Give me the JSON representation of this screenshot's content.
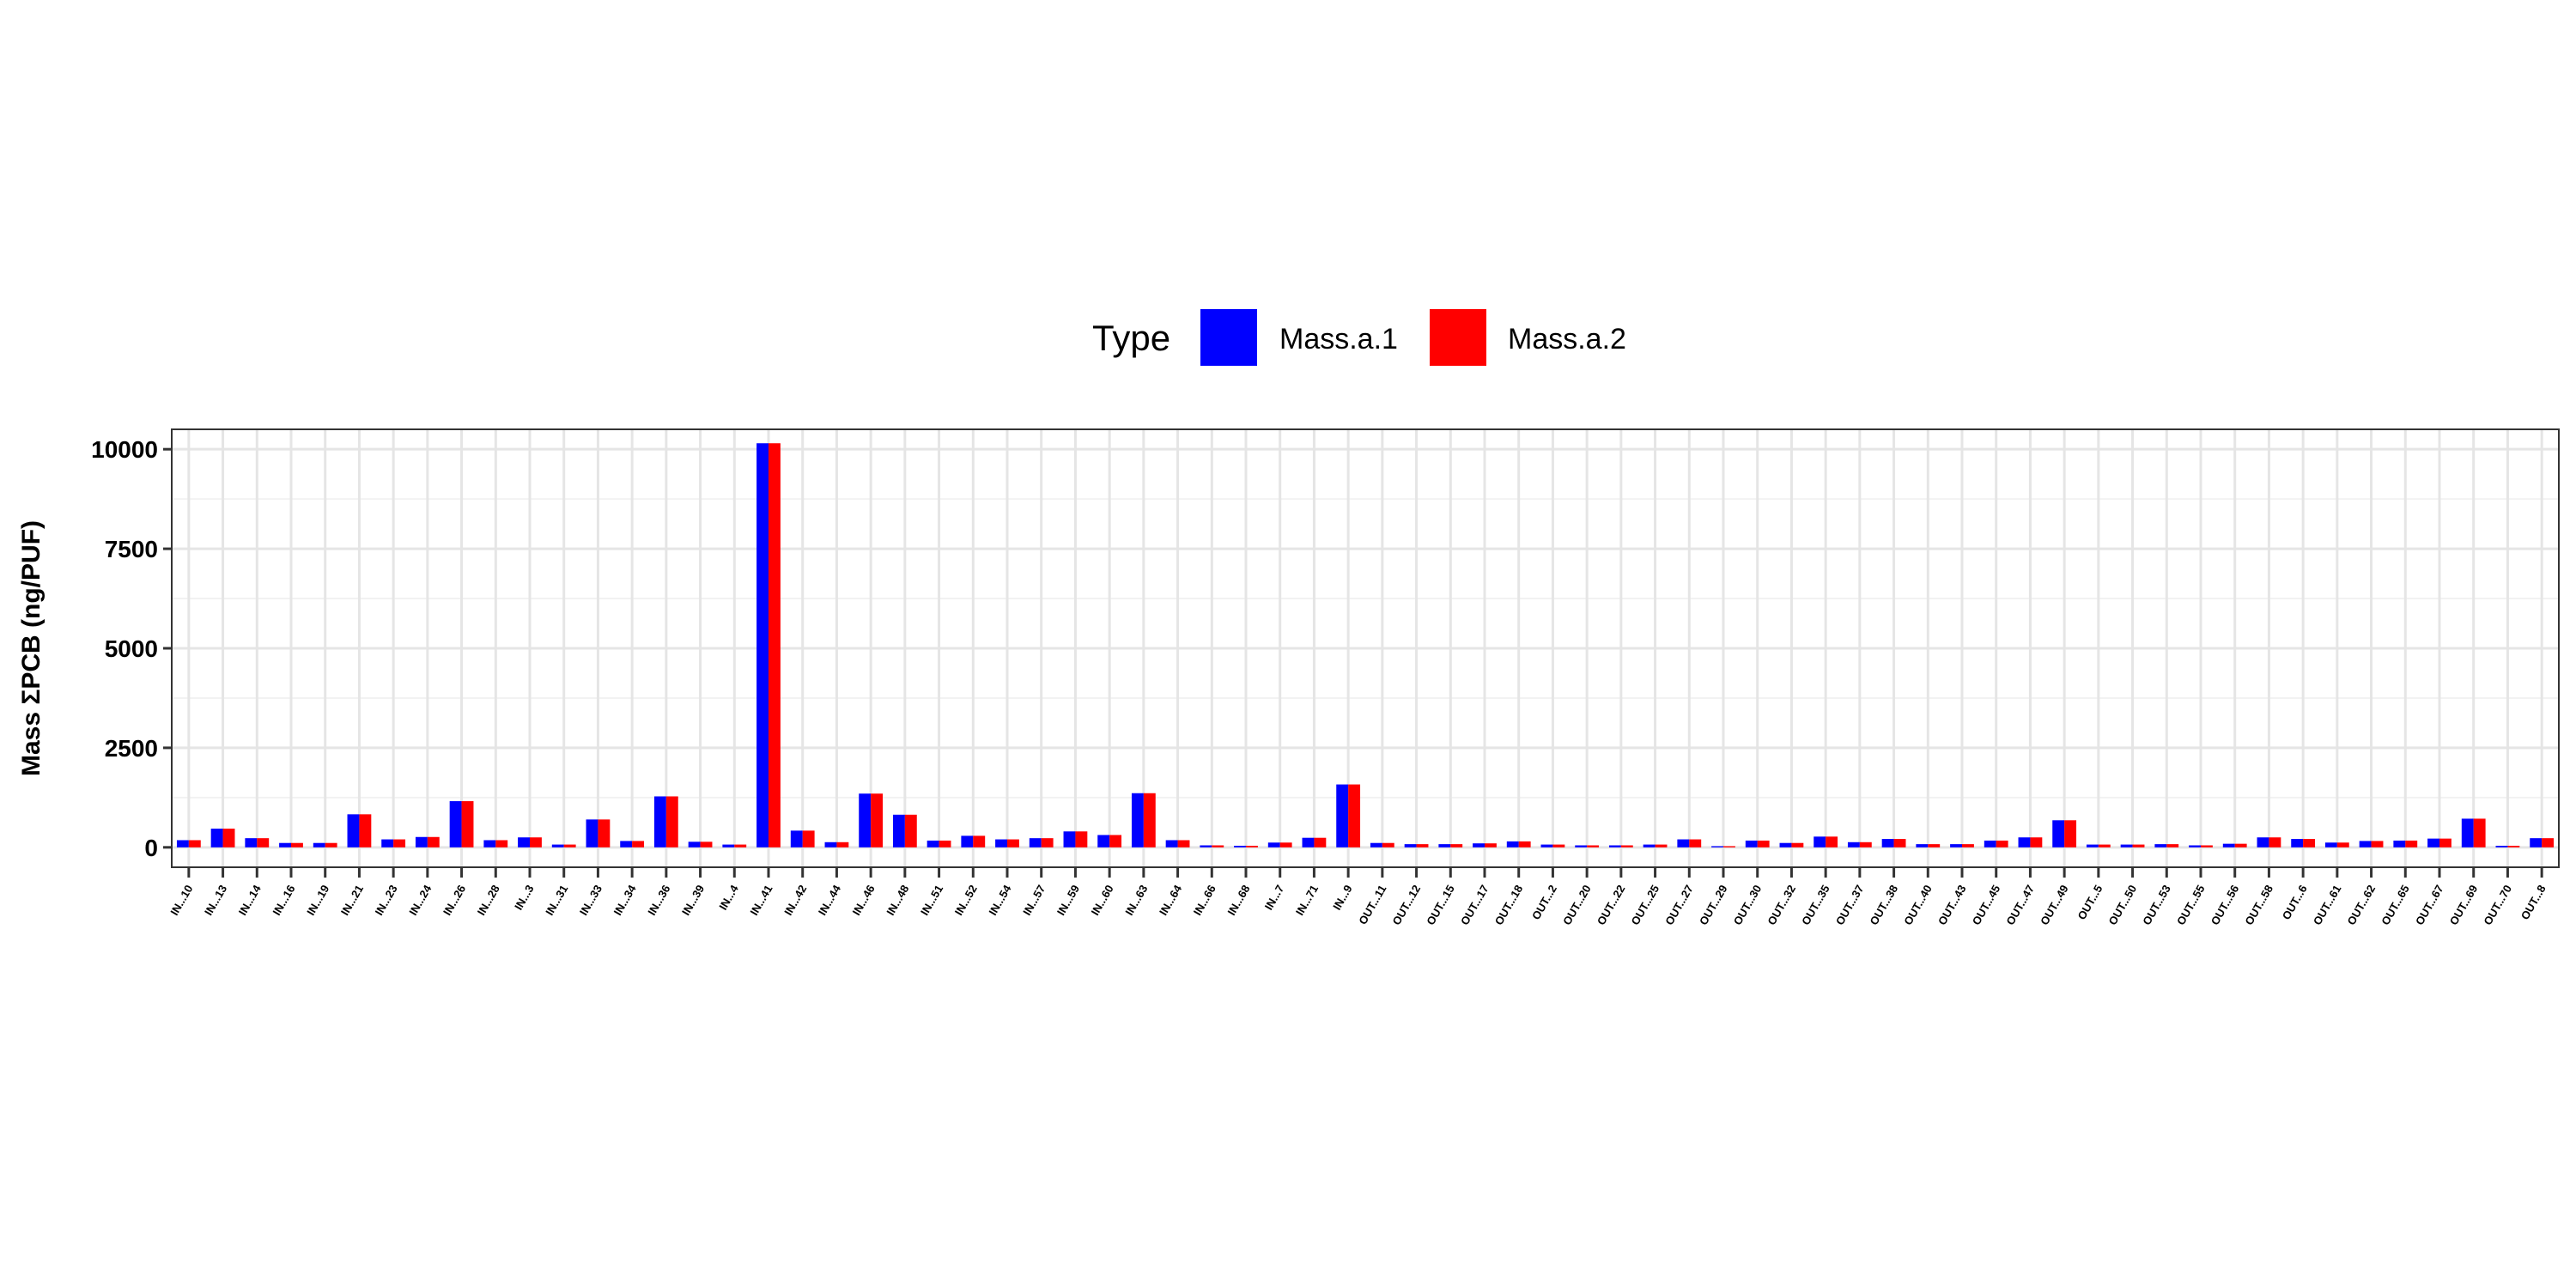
{
  "chart_data": {
    "type": "bar",
    "title": "",
    "xlabel": "",
    "ylabel": "Mass ΣPCB (ng/PUF)",
    "ylim": [
      -500,
      10500
    ],
    "yticks": [
      0,
      2500,
      5000,
      7500,
      10000
    ],
    "grid": true,
    "legend": {
      "title": "Type",
      "position": "top"
    },
    "categories": [
      "IN...10",
      "IN...13",
      "IN...14",
      "IN...16",
      "IN...19",
      "IN...21",
      "IN...23",
      "IN...24",
      "IN...26",
      "IN...28",
      "IN...3",
      "IN...31",
      "IN...33",
      "IN...34",
      "IN...36",
      "IN...39",
      "IN...4",
      "IN...41",
      "IN...42",
      "IN...44",
      "IN...46",
      "IN...48",
      "IN...51",
      "IN...52",
      "IN...54",
      "IN...57",
      "IN...59",
      "IN...60",
      "IN...63",
      "IN...64",
      "IN...66",
      "IN...68",
      "IN...7",
      "IN...71",
      "IN...9",
      "OUT...11",
      "OUT...12",
      "OUT...15",
      "OUT...17",
      "OUT...18",
      "OUT...2",
      "OUT...20",
      "OUT...22",
      "OUT...25",
      "OUT...27",
      "OUT...29",
      "OUT...30",
      "OUT...32",
      "OUT...35",
      "OUT...37",
      "OUT...38",
      "OUT...40",
      "OUT...43",
      "OUT...45",
      "OUT...47",
      "OUT...49",
      "OUT...5",
      "OUT...50",
      "OUT...53",
      "OUT...55",
      "OUT...56",
      "OUT...58",
      "OUT...6",
      "OUT...61",
      "OUT...62",
      "OUT...65",
      "OUT...67",
      "OUT...69",
      "OUT...70",
      "OUT...8"
    ],
    "series": [
      {
        "name": "Mass.a.1",
        "color": "#0000ff",
        "values": [
          180,
          470,
          230,
          110,
          110,
          830,
          200,
          260,
          1160,
          180,
          250,
          70,
          700,
          160,
          1280,
          140,
          70,
          10150,
          420,
          130,
          1350,
          820,
          170,
          290,
          200,
          230,
          400,
          310,
          1360,
          180,
          50,
          40,
          120,
          240,
          1580,
          110,
          80,
          80,
          100,
          150,
          70,
          50,
          50,
          70,
          200,
          30,
          170,
          110,
          270,
          130,
          210,
          80,
          80,
          170,
          250,
          680,
          70,
          70,
          80,
          50,
          90,
          250,
          210,
          120,
          160,
          170,
          220,
          720,
          40,
          230
        ]
      },
      {
        "name": "Mass.a.2",
        "color": "#ff0000",
        "values": [
          180,
          470,
          230,
          110,
          110,
          830,
          200,
          260,
          1160,
          180,
          250,
          70,
          700,
          160,
          1280,
          140,
          70,
          10150,
          420,
          130,
          1350,
          820,
          170,
          290,
          200,
          230,
          400,
          310,
          1360,
          180,
          50,
          40,
          120,
          240,
          1580,
          110,
          80,
          80,
          100,
          150,
          70,
          50,
          50,
          70,
          200,
          30,
          170,
          110,
          270,
          130,
          210,
          80,
          80,
          170,
          250,
          680,
          70,
          70,
          80,
          50,
          90,
          250,
          210,
          120,
          160,
          170,
          220,
          720,
          40,
          230
        ]
      }
    ]
  },
  "colors": {
    "panel_border": "#333333",
    "grid_major": "#e5e5e5",
    "grid_minor": "#f2f2f2"
  }
}
